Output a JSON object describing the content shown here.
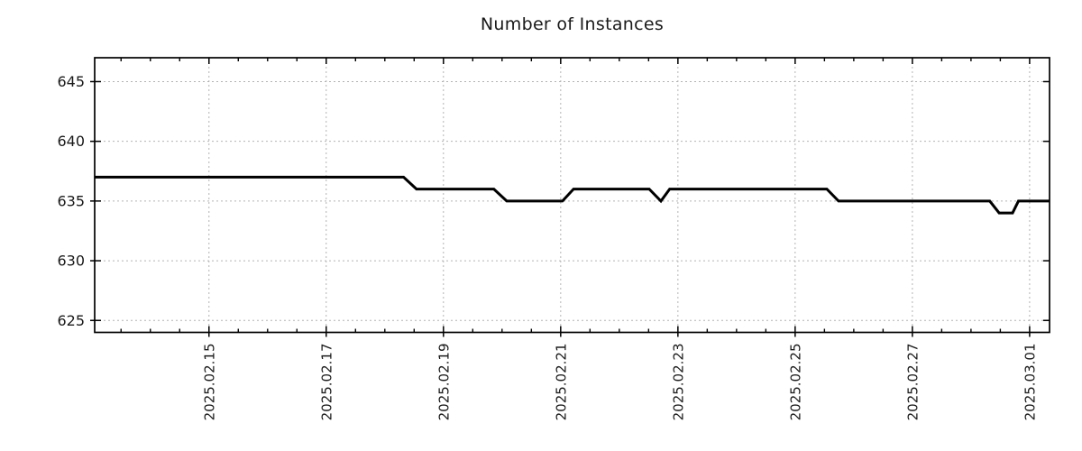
{
  "chart_data": {
    "type": "line",
    "title": "Number of Instances",
    "xlabel": "",
    "ylabel": "",
    "x_unit": "day of February 2025 (29.x = March 1)",
    "xlim": [
      13.05,
      29.34
    ],
    "ylim": [
      624,
      647
    ],
    "grid": true,
    "grid_style": "dashed",
    "legend": "none",
    "x_ticks": [
      {
        "value": 15,
        "label": "2025.02.15"
      },
      {
        "value": 17,
        "label": "2025.02.17"
      },
      {
        "value": 19,
        "label": "2025.02.19"
      },
      {
        "value": 21,
        "label": "2025.02.21"
      },
      {
        "value": 23,
        "label": "2025.02.23"
      },
      {
        "value": 25,
        "label": "2025.02.25"
      },
      {
        "value": 27,
        "label": "2025.02.27"
      },
      {
        "value": 29,
        "label": "2025.03.01"
      }
    ],
    "x_minor_step": 0.5,
    "y_ticks": [
      {
        "value": 625,
        "label": "625"
      },
      {
        "value": 630,
        "label": "630"
      },
      {
        "value": 635,
        "label": "635"
      },
      {
        "value": 640,
        "label": "640"
      },
      {
        "value": 645,
        "label": "645"
      }
    ],
    "series": [
      {
        "name": "instances",
        "color": "#000000",
        "width": 3,
        "points": [
          [
            13.05,
            637
          ],
          [
            18.32,
            637
          ],
          [
            18.54,
            636
          ],
          [
            19.86,
            636
          ],
          [
            20.08,
            635
          ],
          [
            21.03,
            635
          ],
          [
            21.22,
            636
          ],
          [
            22.51,
            636
          ],
          [
            22.71,
            635
          ],
          [
            22.86,
            636
          ],
          [
            25.54,
            636
          ],
          [
            25.74,
            635
          ],
          [
            28.32,
            635
          ],
          [
            28.48,
            634
          ],
          [
            28.71,
            634
          ],
          [
            28.81,
            635
          ],
          [
            29.34,
            635
          ]
        ]
      }
    ],
    "colors": {
      "line": "#000000",
      "grid": "#b3b3b3",
      "axis": "#000000",
      "text": "#1a1a1a",
      "background": "#ffffff"
    }
  }
}
